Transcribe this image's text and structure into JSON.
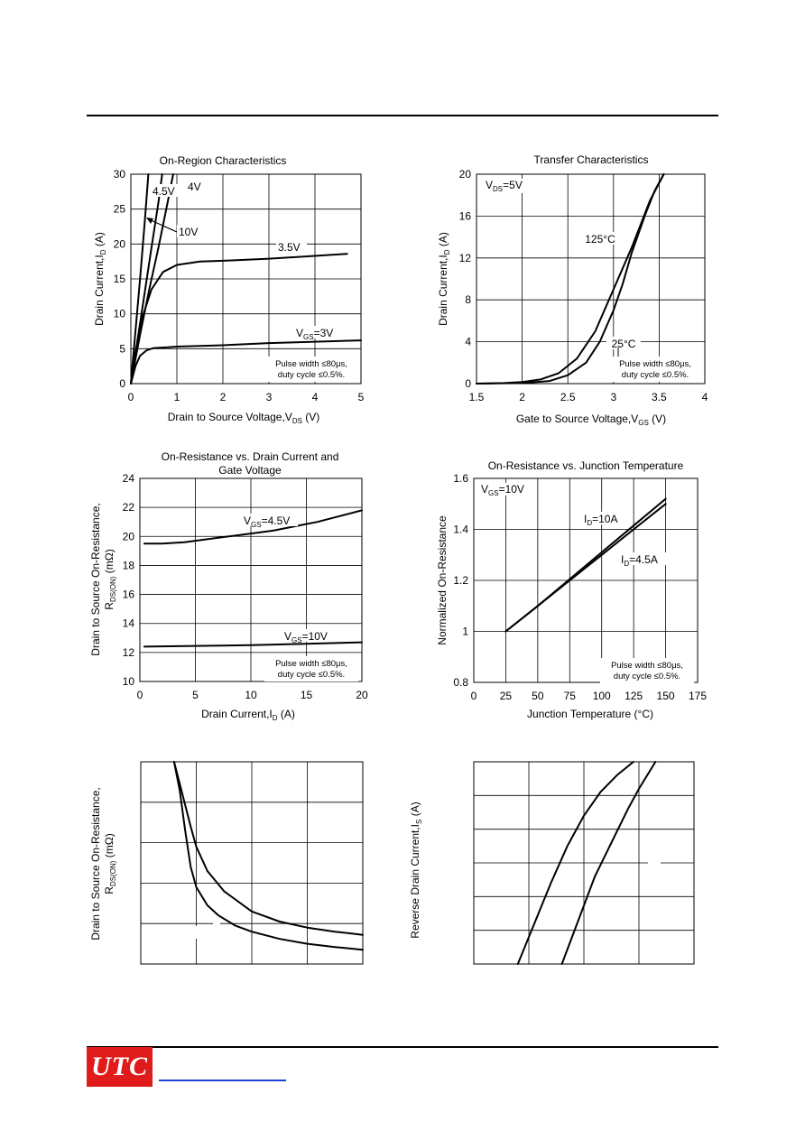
{
  "chart_data": [
    {
      "type": "line",
      "title": "On-Region Characteristics",
      "xlabel": "Drain to Source Voltage,V",
      "xlabel_sub": "DS",
      "xlabel_unit": " (V)",
      "ylabel": "Drain Current,I",
      "ylabel_sub": "D",
      "ylabel_unit": " (A)",
      "xlim": [
        0,
        5
      ],
      "ylim": [
        0,
        30
      ],
      "xticks": [
        "0",
        "1",
        "2",
        "3",
        "4",
        "5"
      ],
      "yticks": [
        "0",
        "5",
        "10",
        "15",
        "20",
        "25",
        "30"
      ],
      "series": [
        {
          "name": "10V",
          "x": [
            0,
            0.1,
            0.2,
            0.3,
            0.38
          ],
          "y": [
            0,
            7.5,
            15,
            23,
            30
          ]
        },
        {
          "name": "4.5V",
          "x": [
            0,
            0.15,
            0.3,
            0.45,
            0.6,
            0.68
          ],
          "y": [
            0,
            6.5,
            13,
            19.5,
            26,
            30
          ]
        },
        {
          "name": "4V",
          "x": [
            0,
            0.2,
            0.4,
            0.6,
            0.8,
            0.92
          ],
          "y": [
            0,
            7,
            13.5,
            19.5,
            26,
            30
          ]
        },
        {
          "name": "3.5V",
          "x": [
            0,
            0.1,
            0.25,
            0.45,
            0.7,
            1,
            1.5,
            2,
            3,
            4,
            4.7
          ],
          "y": [
            0,
            4.5,
            9.5,
            13.5,
            16,
            17,
            17.5,
            17.6,
            17.9,
            18.3,
            18.6
          ]
        },
        {
          "name": "V_GS=3V",
          "x": [
            0,
            0.1,
            0.2,
            0.35,
            0.5,
            0.8,
            1,
            2,
            3,
            4,
            5
          ],
          "y": [
            0,
            2.5,
            4,
            4.8,
            5.1,
            5.2,
            5.3,
            5.5,
            5.8,
            6,
            6.2
          ]
        }
      ],
      "labels": {
        "v10": "10V",
        "v45": "4.5V",
        "v4": "4V",
        "v35": "3.5V",
        "vgs_pre": "V",
        "vgs_sub": "GS",
        "vgs_post": "=3V"
      },
      "note": [
        "Pulse width ≤80μs,",
        "duty cycle ≤0.5%."
      ]
    },
    {
      "type": "line",
      "title": "Transfer Characteristics",
      "xlabel": "Gate to Source Voltage,V",
      "xlabel_sub": "GS",
      "xlabel_unit": " (V)",
      "ylabel": "Drain Current,I",
      "ylabel_sub": "D",
      "ylabel_unit": " (A)",
      "xlim": [
        1.5,
        4
      ],
      "ylim": [
        0,
        20
      ],
      "xticks": [
        "1.5",
        "2",
        "2.5",
        "3",
        "3.5",
        "4"
      ],
      "yticks": [
        "0",
        "4",
        "8",
        "12",
        "16",
        "20"
      ],
      "series": [
        {
          "name": "125°C",
          "x": [
            1.5,
            1.8,
            2,
            2.2,
            2.4,
            2.6,
            2.8,
            3,
            3.2,
            3.4,
            3.55
          ],
          "y": [
            0,
            0.05,
            0.15,
            0.4,
            1,
            2.4,
            5,
            9,
            13,
            17.5,
            20
          ]
        },
        {
          "name": "25°C",
          "x": [
            1.5,
            2,
            2.3,
            2.5,
            2.7,
            2.85,
            3,
            3.1,
            3.2,
            3.35,
            3.45,
            3.55
          ],
          "y": [
            0,
            0.05,
            0.25,
            0.8,
            2,
            4,
            7,
            9.5,
            12.5,
            16.2,
            18.4,
            20
          ]
        }
      ],
      "labels": {
        "vds_pre": "V",
        "vds_sub": "DS",
        "vds_post": "=5V",
        "t125": "125°C",
        "t25": "25°C"
      },
      "note": [
        "Pulse width ≤80μs,",
        "duty cycle ≤0.5%."
      ]
    },
    {
      "type": "line",
      "title": [
        "On-Resistance vs. Drain Current and",
        "Gate Voltage"
      ],
      "xlabel": "Drain Current,I",
      "xlabel_sub": "D",
      "xlabel_unit": " (A)",
      "ylabel": [
        "Drain to Source On-Resistance,",
        "R",
        "DS(ON)",
        " (mΩ)"
      ],
      "xlim": [
        0,
        20
      ],
      "ylim": [
        10,
        24
      ],
      "xticks": [
        "0",
        "5",
        "10",
        "15",
        "20"
      ],
      "yticks": [
        "10",
        "12",
        "14",
        "16",
        "18",
        "20",
        "22",
        "24"
      ],
      "series": [
        {
          "name": "V_GS=4.5V",
          "x": [
            0.4,
            2,
            4,
            6,
            8,
            10,
            12,
            14,
            16,
            18,
            20
          ],
          "y": [
            19.5,
            19.5,
            19.6,
            19.8,
            20,
            20.2,
            20.4,
            20.7,
            21,
            21.4,
            21.8
          ]
        },
        {
          "name": "V_GS=10V",
          "x": [
            0.4,
            5,
            10,
            15,
            20
          ],
          "y": [
            12.4,
            12.45,
            12.5,
            12.6,
            12.7
          ]
        }
      ],
      "labels": {
        "v45_pre": "V",
        "v45_sub": "GS",
        "v45_post": "=4.5V",
        "v10_pre": "V",
        "v10_sub": "GS",
        "v10_post": "=10V"
      },
      "note": [
        "Pulse width ≤80μs,",
        "duty cycle ≤0.5%."
      ]
    },
    {
      "type": "line",
      "title": "On-Resistance vs. Junction Temperature",
      "xlabel": "Junction Temperature (°C)",
      "ylabel": "Normalized On-Resistance",
      "xlim": [
        0,
        175
      ],
      "ylim": [
        0.8,
        1.6
      ],
      "xticks": [
        "0",
        "25",
        "50",
        "75",
        "100",
        "125",
        "150",
        "175"
      ],
      "yticks": [
        "0.8",
        "1",
        "1.2",
        "1.4",
        "1.6"
      ],
      "series": [
        {
          "name": "I_D=10A",
          "x": [
            25,
            50,
            75,
            100,
            125,
            150
          ],
          "y": [
            1,
            1.1,
            1.205,
            1.31,
            1.415,
            1.52
          ]
        },
        {
          "name": "I_D=4.5A",
          "x": [
            25,
            50,
            75,
            100,
            125,
            150
          ],
          "y": [
            1,
            1.1,
            1.2,
            1.3,
            1.4,
            1.5
          ]
        }
      ],
      "labels": {
        "vgs_pre": "V",
        "vgs_sub": "GS",
        "vgs_post": "=10V",
        "id10_pre": "I",
        "id10_sub": "D",
        "id10_post": "=10A",
        "id45_pre": "I",
        "id45_sub": "D",
        "id45_post": "=4.5A"
      },
      "note": [
        "Pulse width ≤80μs,",
        "duty cycle ≤0.5%."
      ]
    },
    {
      "type": "line",
      "title": "",
      "ylabel": [
        "Drain to Source On-Resistance,",
        "R",
        "DS(ON)",
        " (mΩ)"
      ],
      "xlim": [
        0,
        4
      ],
      "ylim": [
        0,
        5
      ],
      "series": [
        {
          "x": [
            0.6,
            0.7,
            0.8,
            0.9,
            1,
            1.2,
            1.4,
            1.7,
            2,
            2.5,
            3,
            3.5,
            4
          ],
          "y": [
            5,
            4.3,
            3.3,
            2.4,
            1.9,
            1.45,
            1.2,
            0.95,
            0.8,
            0.62,
            0.5,
            0.42,
            0.35
          ]
        },
        {
          "x": [
            0.6,
            0.75,
            0.9,
            1,
            1.2,
            1.5,
            2,
            2.5,
            3,
            3.5,
            4
          ],
          "y": [
            5,
            4.2,
            3.4,
            2.9,
            2.3,
            1.8,
            1.3,
            1.05,
            0.9,
            0.8,
            0.72
          ]
        }
      ]
    },
    {
      "type": "line",
      "title": "",
      "ylabel": [
        "Reverse Drain Current,I",
        "S",
        " (A)"
      ],
      "xlim": [
        0,
        4
      ],
      "ylim": [
        0,
        6
      ],
      "series": [
        {
          "x": [
            0.8,
            1.1,
            1.4,
            1.7,
            2,
            2.3,
            2.6,
            2.9
          ],
          "y": [
            0,
            1.2,
            2.4,
            3.5,
            4.4,
            5.1,
            5.6,
            6
          ]
        },
        {
          "x": [
            1.6,
            1.9,
            2.2,
            2.5,
            2.8,
            3,
            3.3
          ],
          "y": [
            0,
            1.3,
            2.6,
            3.6,
            4.6,
            5.2,
            6
          ]
        }
      ]
    }
  ]
}
